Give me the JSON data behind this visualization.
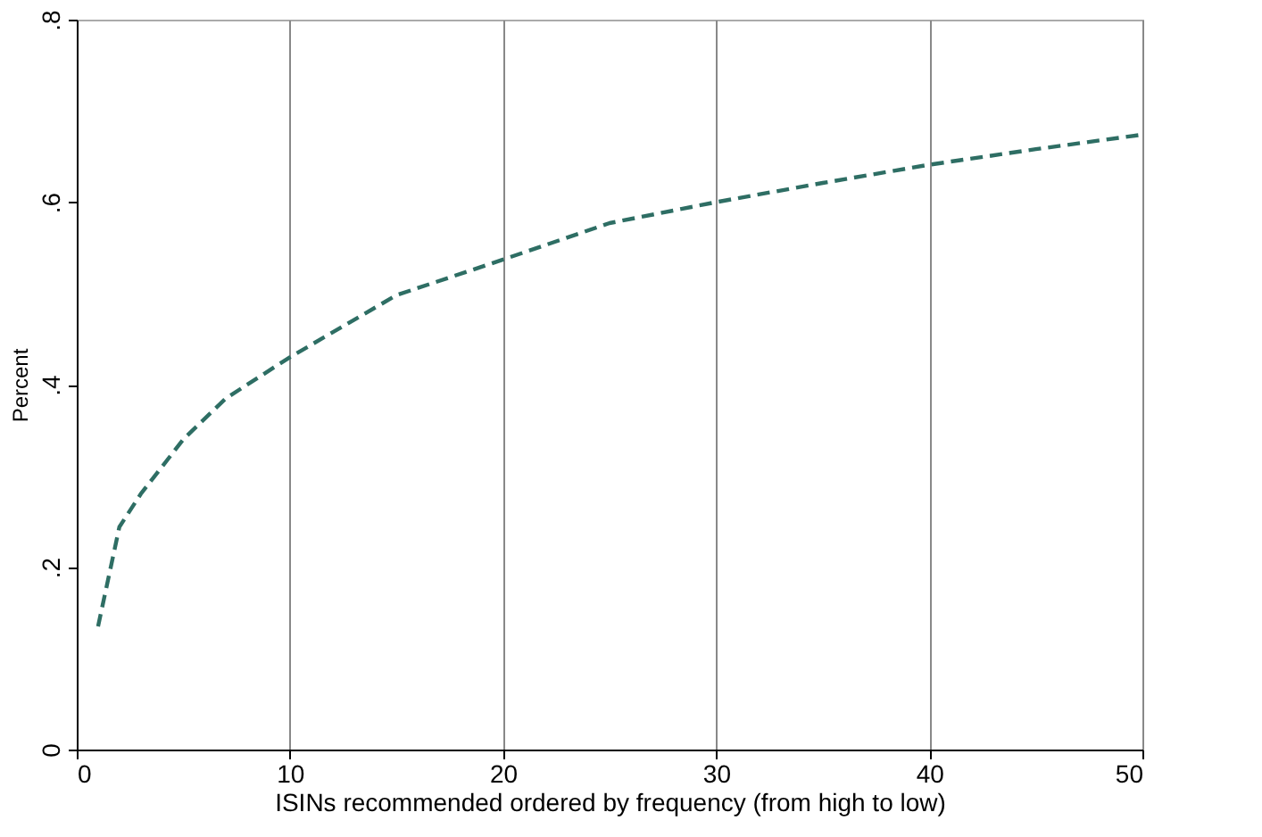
{
  "chart_data": {
    "type": "line",
    "xlabel": "ISINs recommended ordered by frequency (from high to low)",
    "ylabel": "Percent",
    "x": [
      1,
      2,
      3,
      5,
      7,
      10,
      15,
      20,
      25,
      30,
      35,
      40,
      45,
      50
    ],
    "series": [
      {
        "color": "#2e6e64",
        "values": [
          0.135,
          0.244,
          0.28,
          0.34,
          0.385,
          0.43,
          0.498,
          0.537,
          0.577,
          0.6,
          0.621,
          0.641,
          0.658,
          0.674
        ]
      }
    ],
    "xlim": [
      0,
      50
    ],
    "xticks": [
      0,
      10,
      20,
      30,
      40,
      50
    ],
    "ylim": [
      0,
      0.8
    ],
    "yticks": [
      {
        "value": 0,
        "label": "0"
      },
      {
        "value": 0.2,
        "label": ".2"
      },
      {
        "value": 0.4,
        "label": ".4"
      },
      {
        "value": 0.6,
        "label": ".6"
      },
      {
        "value": 0.8,
        "label": ".8"
      }
    ],
    "grid": "x",
    "line_style": "dashed",
    "marker": "none",
    "legend": false
  }
}
